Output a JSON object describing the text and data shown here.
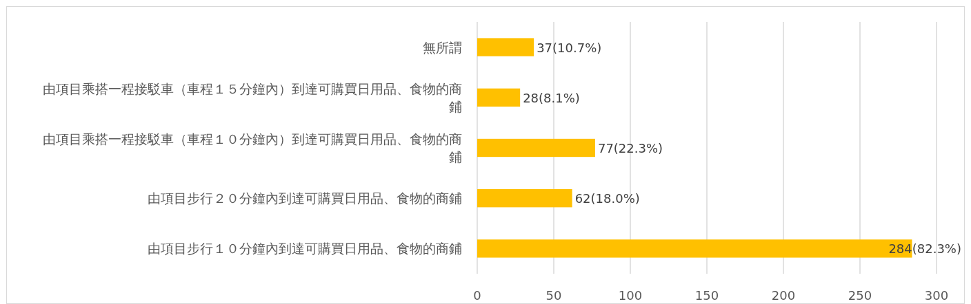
{
  "chart_data": {
    "type": "bar",
    "orientation": "horizontal",
    "categories": [
      "無所謂",
      "由項目乘搭一程接駁車（車程１５分鐘內）到達可購買日用品、食物的商鋪",
      "由項目乘搭一程接駁車（車程１０分鐘內）到達可購買日用品、食物的商鋪",
      "由項目步行２０分鐘內到達可購買日用品、食物的商鋪",
      "由項目步行１０分鐘內到達可購買日用品、食物的商鋪"
    ],
    "values": [
      37,
      28,
      77,
      62,
      284
    ],
    "value_labels": [
      "37(10.7%)",
      "28(8.1%)",
      "77(22.3%)",
      "62(18.0%)",
      "284(82.3%)"
    ],
    "color": "#ffc000",
    "xlim": [
      0,
      300
    ],
    "xticks": [
      0,
      50,
      100,
      150,
      200,
      250,
      300
    ],
    "grid": "x"
  }
}
